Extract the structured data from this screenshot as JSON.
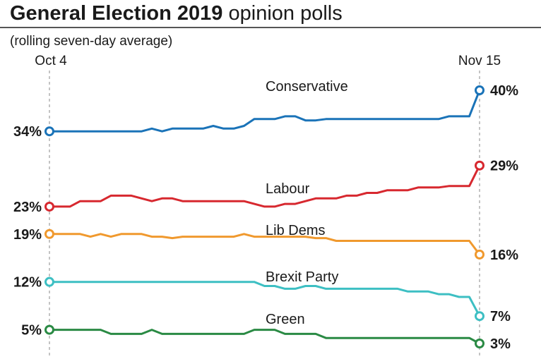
{
  "header": {
    "title_bold": "General Election 2019",
    "title_rest": " opinion polls",
    "subtitle": "(rolling seven-day average)"
  },
  "chart_data": {
    "type": "line",
    "title": "General Election 2019 opinion polls",
    "subtitle": "(rolling seven-day average)",
    "x_start_label": "Oct 4",
    "x_end_label": "Nov 15",
    "legend": "labels on lines",
    "grid": false,
    "series": [
      {
        "name": "Conservative",
        "color": "#1a73b8",
        "start_label": "34%",
        "end_label": "40%",
        "values": [
          34,
          34,
          34,
          34,
          34,
          34,
          34,
          34,
          34,
          34,
          34.4,
          34,
          34.4,
          34.4,
          34.4,
          34.4,
          34.8,
          34.4,
          34.4,
          34.8,
          35.8,
          35.8,
          35.8,
          36.2,
          36.2,
          35.6,
          35.6,
          35.8,
          35.8,
          35.8,
          35.8,
          35.8,
          35.8,
          35.8,
          35.8,
          35.8,
          35.8,
          35.8,
          35.8,
          36.2,
          36.2,
          36.2,
          40
        ]
      },
      {
        "name": "Labour",
        "color": "#d7282f",
        "start_label": "23%",
        "end_label": "29%",
        "values": [
          23,
          23,
          23,
          23.8,
          23.8,
          23.8,
          24.6,
          24.6,
          24.6,
          24.2,
          23.8,
          24.2,
          24.2,
          23.8,
          23.8,
          23.8,
          23.8,
          23.8,
          23.8,
          23.8,
          23.4,
          23,
          23,
          23.4,
          23.4,
          23.8,
          24.2,
          24.2,
          24.2,
          24.6,
          24.6,
          25,
          25,
          25.4,
          25.4,
          25.4,
          25.8,
          25.8,
          25.8,
          26,
          26,
          26,
          29
        ]
      },
      {
        "name": "Lib Dems",
        "color": "#f0992e",
        "start_label": "19%",
        "end_label": "16%",
        "values": [
          19,
          19,
          19,
          19,
          18.6,
          19,
          18.6,
          19,
          19,
          19,
          18.6,
          18.6,
          18.4,
          18.6,
          18.6,
          18.6,
          18.6,
          18.6,
          18.6,
          19,
          18.6,
          18.6,
          18.6,
          18.6,
          18.6,
          18.6,
          18.4,
          18.4,
          18,
          18,
          18,
          18,
          18,
          18,
          18,
          18,
          18,
          18,
          18,
          18,
          18,
          18,
          16
        ]
      },
      {
        "name": "Brexit Party",
        "color": "#3dbfc3",
        "start_label": "12%",
        "end_label": "7%",
        "values": [
          12,
          12,
          12,
          12,
          12,
          12,
          12,
          12,
          12,
          12,
          12,
          12,
          12,
          12,
          12,
          12,
          12,
          12,
          12,
          12,
          12,
          11.4,
          11.4,
          11,
          11,
          11.4,
          11.4,
          11,
          11,
          11,
          11,
          11,
          11,
          11,
          11,
          10.6,
          10.6,
          10.6,
          10.2,
          10.2,
          9.8,
          9.8,
          7
        ]
      },
      {
        "name": "Green",
        "color": "#2a8a44",
        "start_label": "5%",
        "end_label": "3%",
        "values": [
          5,
          5,
          5,
          5,
          5,
          5,
          4.4,
          4.4,
          4.4,
          4.4,
          5,
          4.4,
          4.4,
          4.4,
          4.4,
          4.4,
          4.4,
          4.4,
          4.4,
          4.4,
          5,
          5,
          5,
          4.4,
          4.4,
          4.4,
          4.4,
          3.8,
          3.8,
          3.8,
          3.8,
          3.8,
          3.8,
          3.8,
          3.8,
          3.8,
          3.8,
          3.8,
          3.8,
          3.8,
          3.8,
          3.8,
          3
        ]
      }
    ]
  }
}
